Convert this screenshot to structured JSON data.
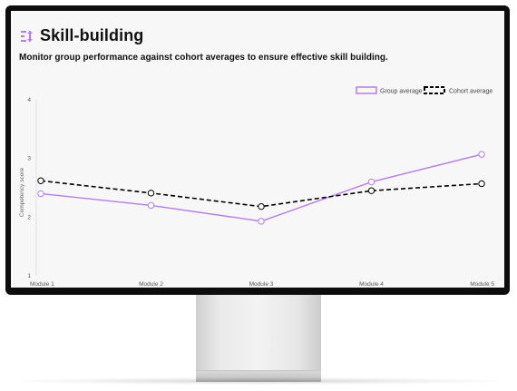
{
  "header": {
    "title": "Skill-building",
    "icon": "chart-adjust-icon",
    "accent": "#b57bf0"
  },
  "subtitle": "Monitor group performance against cohort averages to ensure effective skill building.",
  "chart_data": {
    "type": "line",
    "categories": [
      "Module 1",
      "Module 2",
      "Module 3",
      "Module 4",
      "Module 5"
    ],
    "series": [
      {
        "name": "Group average",
        "values": [
          2.4,
          2.2,
          1.93,
          2.6,
          3.07
        ],
        "color": "#b57bf0",
        "style": "solid"
      },
      {
        "name": "Cohort average",
        "values": [
          2.62,
          2.41,
          2.18,
          2.45,
          2.57
        ],
        "color": "#000000",
        "style": "dashed"
      }
    ],
    "title": "",
    "xlabel": "",
    "ylabel": "Competency score",
    "ylim": [
      1,
      4
    ],
    "yticks": [
      "1",
      "2",
      "3",
      "4"
    ],
    "grid": false,
    "legend": "top-right"
  }
}
